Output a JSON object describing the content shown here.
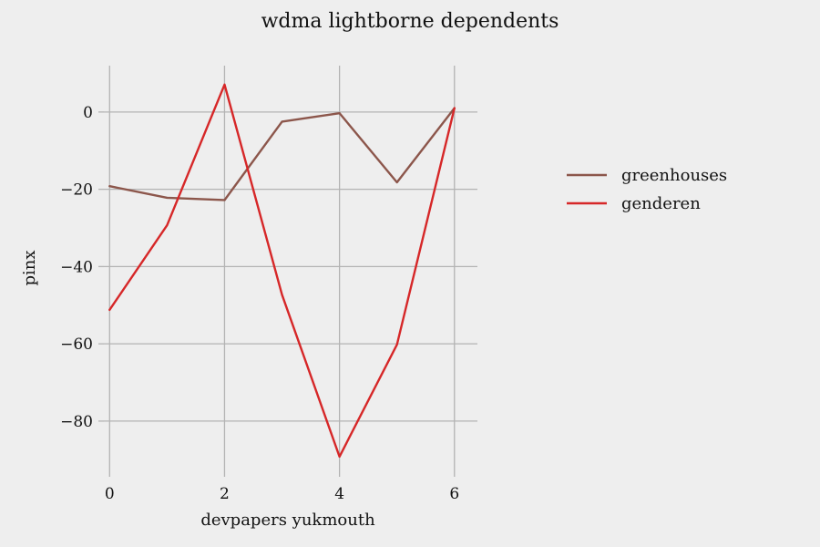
{
  "chart_data": {
    "type": "line",
    "title": "wdma lightborne dependents",
    "xlabel": "devpapers yukmouth",
    "ylabel": "pinx",
    "x": [
      0,
      1,
      2,
      3,
      4,
      5,
      6
    ],
    "xlim": [
      -0.1,
      6.4
    ],
    "ylim": [
      -93,
      12
    ],
    "xticks": [
      0,
      2,
      4,
      6
    ],
    "yticks": [
      0,
      -20,
      -40,
      -60,
      -80
    ],
    "xtick_labels": [
      "0",
      "2",
      "4",
      "6"
    ],
    "ytick_labels": [
      "0",
      "−20",
      "−40",
      "−60",
      "−80"
    ],
    "grid": true,
    "legend_position": "right",
    "series": [
      {
        "name": "greenhouses",
        "color": "#8c564b",
        "values": [
          -19.2,
          -22.2,
          -22.8,
          -2.5,
          -0.3,
          -18.2,
          1.0
        ]
      },
      {
        "name": "genderen",
        "color": "#d62728",
        "values": [
          -51.2,
          -29.3,
          7.1,
          -47.3,
          -89.2,
          -60.2,
          1.0
        ]
      }
    ]
  }
}
